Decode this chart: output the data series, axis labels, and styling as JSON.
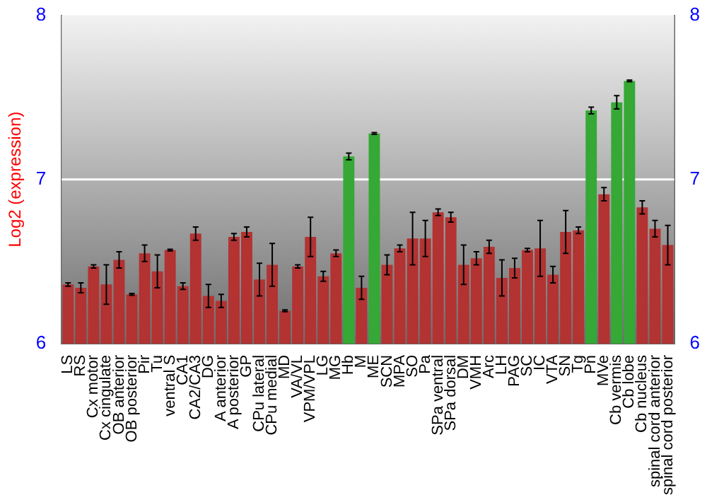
{
  "chart_data": {
    "type": "bar",
    "ylabel": "Log2 (expression)",
    "categories": [
      "LS",
      "RS",
      "Cx motor",
      "Cx cingulate",
      "OB anterior",
      "OB posterior",
      "Pir",
      "Tu",
      "ventral S",
      "CA1",
      "CA2/CA3",
      "DG",
      "A anterior",
      "A posterior",
      "GP",
      "CPu lateral",
      "CPu medial",
      "MD",
      "VA/VL",
      "VPM/VPL",
      "LG",
      "MG",
      "Hb",
      "M",
      "ME",
      "SCN",
      "MPA",
      "SO",
      "Pa",
      "SPa ventral",
      "SPa dorsal",
      "DM",
      "VMH",
      "Arc",
      "LH",
      "PAG",
      "SC",
      "IC",
      "VTA",
      "SN",
      "Tg",
      "Pn",
      "MVe",
      "Cb vermis",
      "Cb lobe",
      "Cb nucleus",
      "spinal cord anterior",
      "spinal cord posterior"
    ],
    "values": [
      6.36,
      6.34,
      6.47,
      6.36,
      6.51,
      6.3,
      6.55,
      6.44,
      6.57,
      6.35,
      6.67,
      6.29,
      6.26,
      6.65,
      6.68,
      6.39,
      6.48,
      6.2,
      6.47,
      6.65,
      6.41,
      6.55,
      7.14,
      6.34,
      7.28,
      6.48,
      6.58,
      6.64,
      6.64,
      6.8,
      6.77,
      6.48,
      6.52,
      6.59,
      6.4,
      6.46,
      6.57,
      6.58,
      6.42,
      6.68,
      6.69,
      7.42,
      6.91,
      7.47,
      7.6,
      6.83,
      6.7,
      6.6
    ],
    "errors": [
      0.01,
      0.03,
      0.01,
      0.12,
      0.05,
      0.005,
      0.05,
      0.1,
      0.005,
      0.02,
      0.04,
      0.07,
      0.04,
      0.02,
      0.03,
      0.1,
      0.13,
      0.005,
      0.01,
      0.12,
      0.03,
      0.02,
      0.02,
      0.07,
      0.005,
      0.06,
      0.02,
      0.16,
      0.11,
      0.02,
      0.03,
      0.12,
      0.04,
      0.04,
      0.11,
      0.06,
      0.01,
      0.17,
      0.05,
      0.13,
      0.02,
      0.02,
      0.04,
      0.04,
      0.005,
      0.04,
      0.05,
      0.12
    ],
    "colors": [
      "#b33232",
      "#b33232",
      "#b33232",
      "#b33232",
      "#b33232",
      "#b33232",
      "#b33232",
      "#b33232",
      "#b33232",
      "#b33232",
      "#b33232",
      "#b33232",
      "#b33232",
      "#b33232",
      "#b33232",
      "#b33232",
      "#b33232",
      "#b33232",
      "#b33232",
      "#b33232",
      "#b33232",
      "#b33232",
      "#35a835",
      "#b33232",
      "#35a835",
      "#b33232",
      "#b33232",
      "#b33232",
      "#b33232",
      "#b33232",
      "#b33232",
      "#b33232",
      "#b33232",
      "#b33232",
      "#b33232",
      "#b33232",
      "#b33232",
      "#b33232",
      "#b33232",
      "#b33232",
      "#b33232",
      "#35a835",
      "#b33232",
      "#35a835",
      "#35a835",
      "#b33232",
      "#b33232",
      "#b33232"
    ],
    "ylim": [
      6,
      8
    ],
    "yticks": [
      6,
      7,
      8
    ],
    "y2lim": [
      6,
      8
    ],
    "y2ticks": [
      6,
      7,
      8
    ],
    "grid": "y",
    "legend": false
  }
}
